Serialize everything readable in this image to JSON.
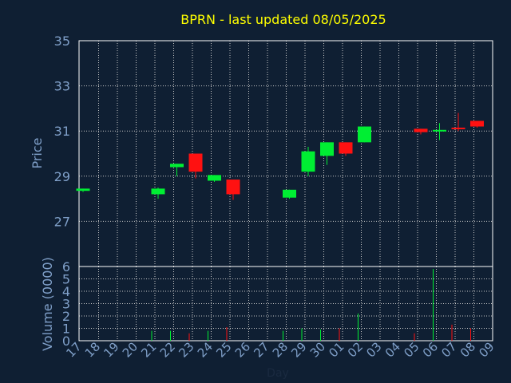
{
  "chart_data": {
    "type": "candlestick",
    "title": "BPRN - last updated 08/05/2025",
    "xlabel": "Day",
    "price_panel": {
      "ylabel": "Price",
      "ylim": [
        25,
        35
      ],
      "yticks": [
        "35",
        "33",
        "31",
        "29",
        "27"
      ]
    },
    "volume_panel": {
      "ylabel": "Volume (0000)",
      "ylim": [
        0,
        6
      ],
      "yticks": [
        "6",
        "5",
        "4",
        "3",
        "2",
        "1",
        "0"
      ]
    },
    "x_tick_labels": [
      "17",
      "18",
      "19",
      "20",
      "21",
      "22",
      "23",
      "24",
      "25",
      "26",
      "27",
      "28",
      "29",
      "30",
      "01",
      "02",
      "03",
      "04",
      "05",
      "06",
      "07",
      "08",
      "09"
    ],
    "colors": {
      "background": "#0f1f33",
      "up": "#00ee33",
      "down": "#ff1111",
      "axis_text": "#7f9fc8",
      "title": "#ffff00",
      "frame": "#ffffff"
    },
    "candles": [
      {
        "day": "17",
        "open": 28.35,
        "high": 28.45,
        "low": 28.3,
        "close": 28.45,
        "volume": 0.0
      },
      {
        "day": "21",
        "open": 28.2,
        "high": 28.5,
        "low": 28.0,
        "close": 28.45,
        "volume": 0.8
      },
      {
        "day": "22",
        "open": 29.4,
        "high": 29.55,
        "low": 29.0,
        "close": 29.55,
        "volume": 0.8
      },
      {
        "day": "23",
        "open": 30.0,
        "high": 30.0,
        "low": 28.9,
        "close": 29.2,
        "volume": 0.6
      },
      {
        "day": "24",
        "open": 28.8,
        "high": 29.05,
        "low": 28.75,
        "close": 29.05,
        "volume": 0.8
      },
      {
        "day": "25",
        "open": 28.85,
        "high": 28.85,
        "low": 27.95,
        "close": 28.2,
        "volume": 1.1
      },
      {
        "day": "28",
        "open": 28.05,
        "high": 28.4,
        "low": 28.0,
        "close": 28.4,
        "volume": 0.8
      },
      {
        "day": "29",
        "open": 29.2,
        "high": 30.3,
        "low": 29.0,
        "close": 30.1,
        "volume": 1.0
      },
      {
        "day": "30",
        "open": 29.9,
        "high": 30.5,
        "low": 29.5,
        "close": 30.5,
        "volume": 0.9
      },
      {
        "day": "01",
        "open": 30.5,
        "high": 30.5,
        "low": 29.9,
        "close": 30.0,
        "volume": 1.0
      },
      {
        "day": "02",
        "open": 30.5,
        "high": 31.2,
        "low": 30.5,
        "close": 31.2,
        "volume": 2.2
      },
      {
        "day": "05",
        "open": 31.1,
        "high": 31.1,
        "low": 30.85,
        "close": 30.95,
        "volume": 0.6
      },
      {
        "day": "06",
        "open": 31.0,
        "high": 31.35,
        "low": 30.6,
        "close": 31.05,
        "volume": 5.8
      },
      {
        "day": "07",
        "open": 31.15,
        "high": 31.8,
        "low": 31.0,
        "close": 31.1,
        "volume": 1.3
      },
      {
        "day": "08",
        "open": 31.45,
        "high": 31.45,
        "low": 31.15,
        "close": 31.2,
        "volume": 1.0
      }
    ]
  }
}
